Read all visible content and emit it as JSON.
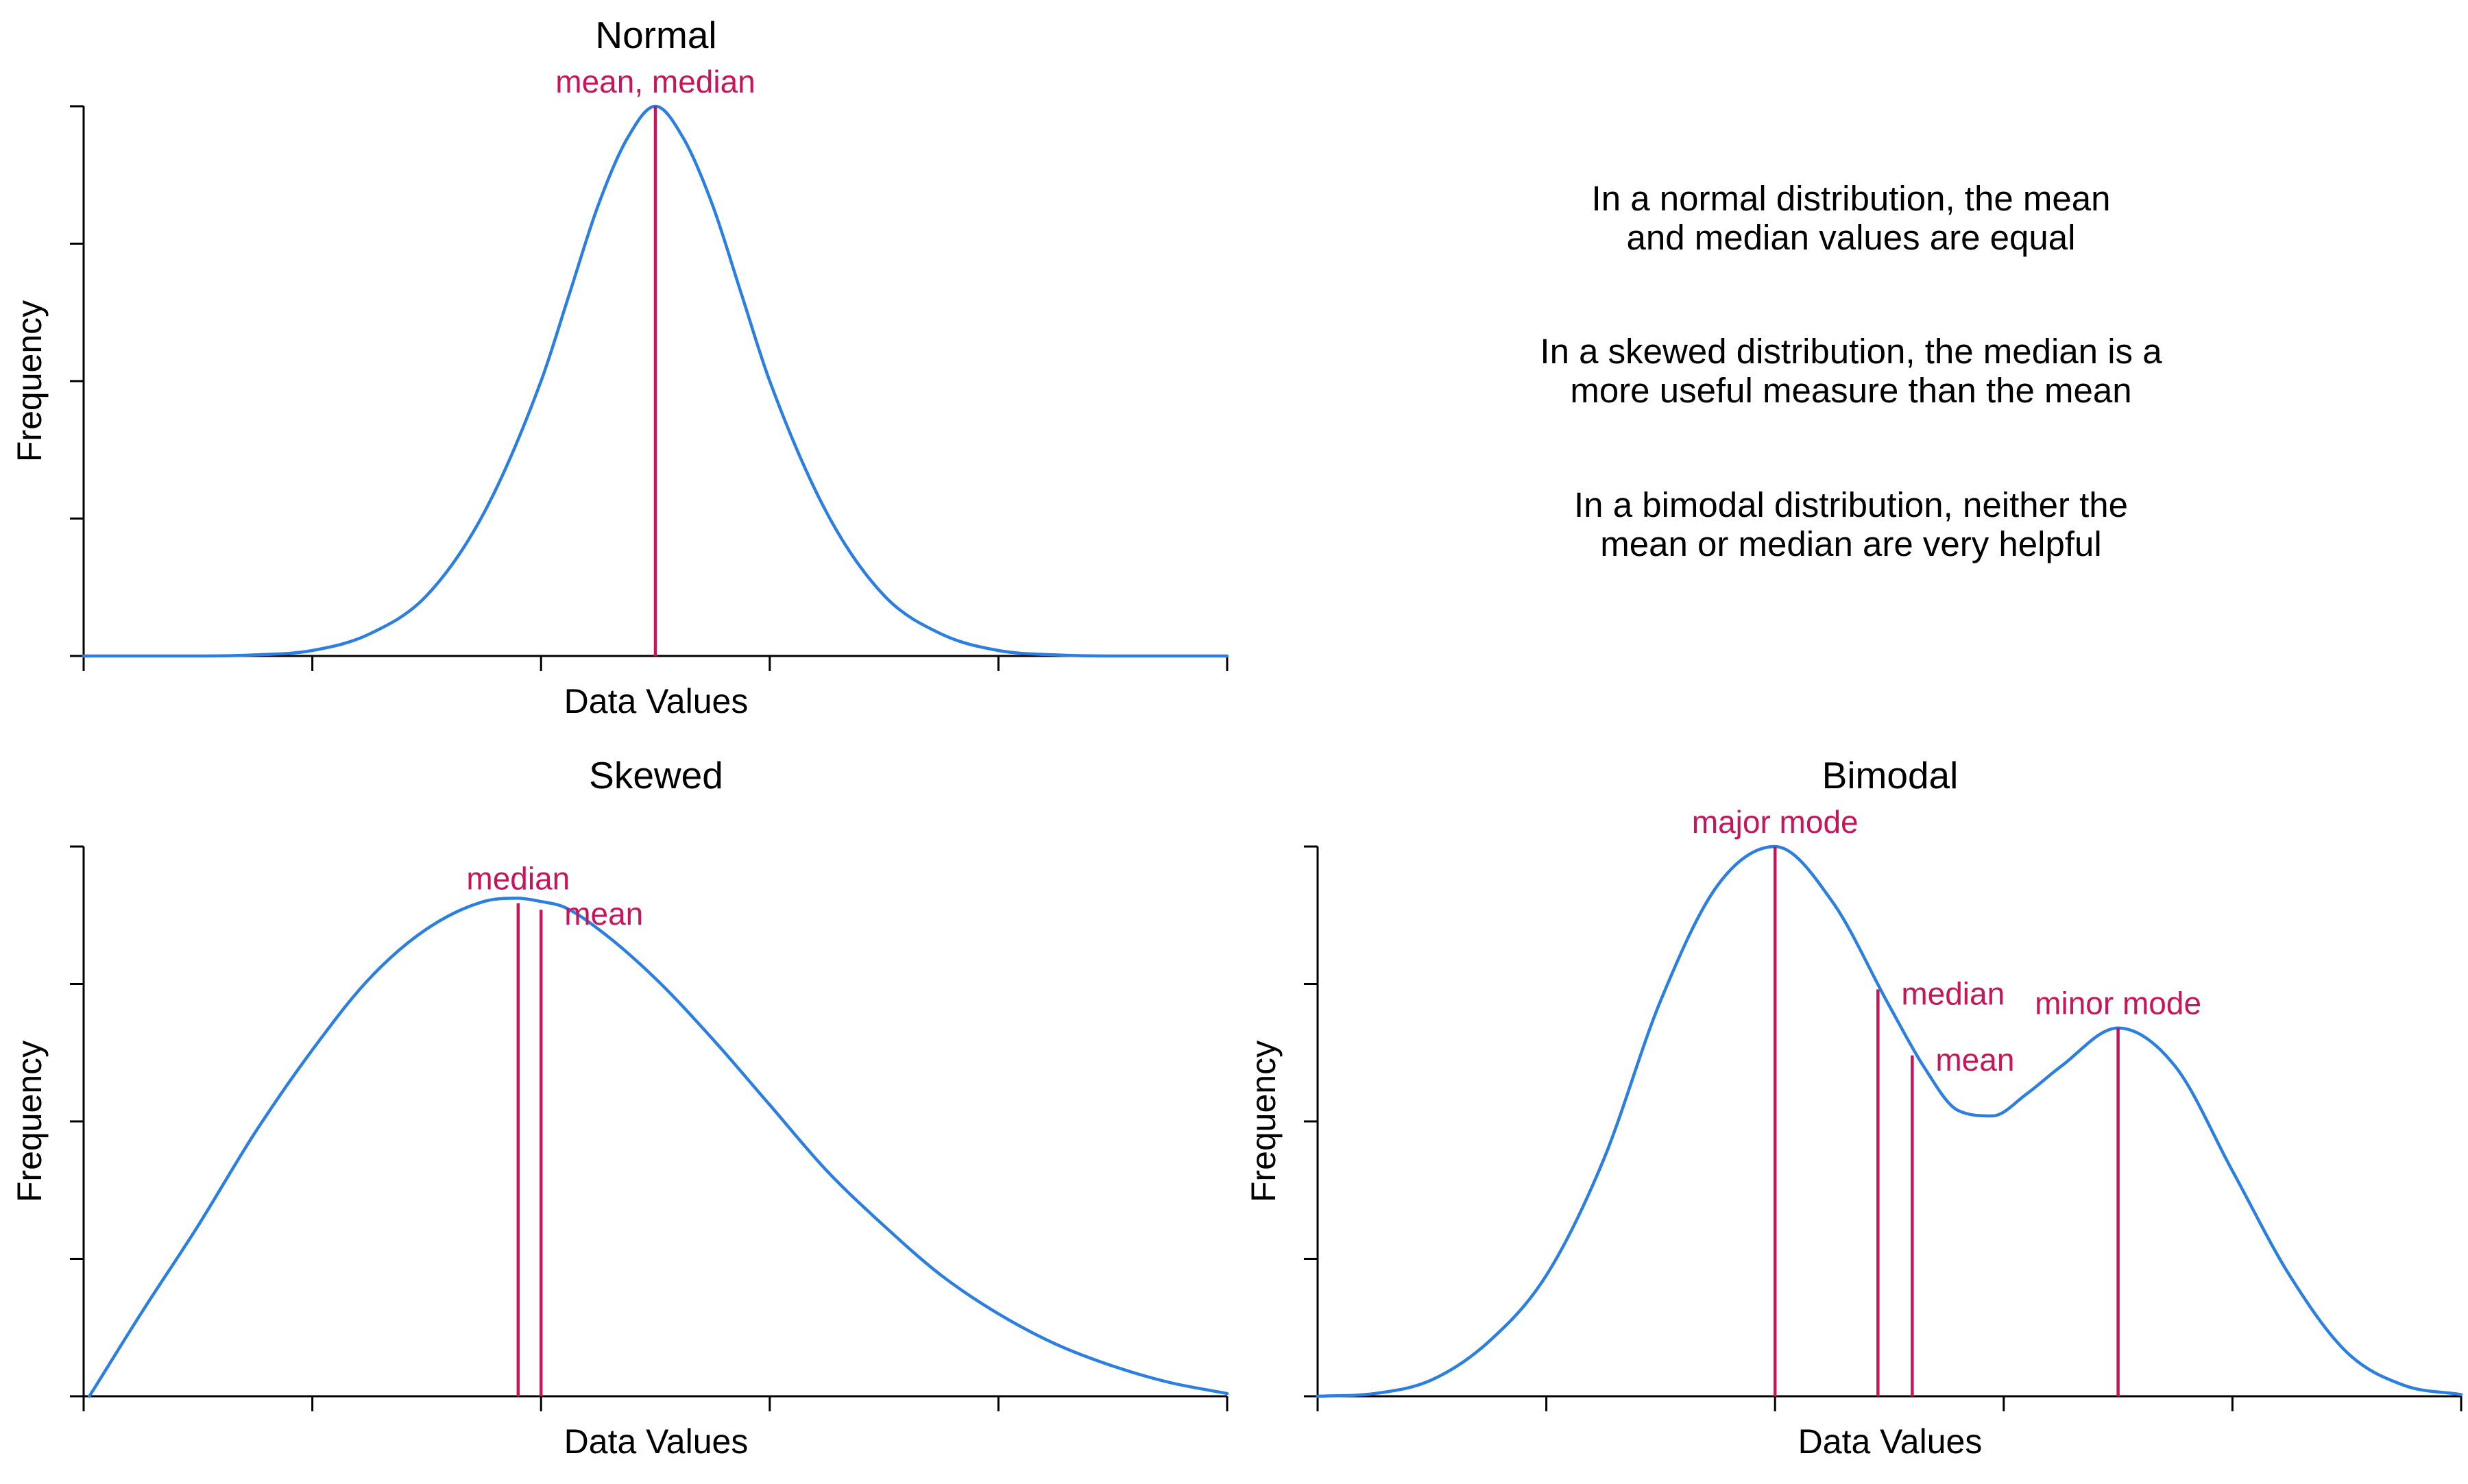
{
  "colors": {
    "curve": "#2a7fe0",
    "marker": "#c8155a",
    "text": "#000000"
  },
  "notes": [
    [
      "In a normal distribution, the mean",
      "and median values are equal"
    ],
    [
      "In a skewed distribution, the median is a",
      "more useful measure than the mean"
    ],
    [
      "In a bimodal distribution, neither the",
      "mean or median are very helpful"
    ]
  ],
  "chart_data": [
    {
      "type": "line",
      "title": "Normal",
      "xlabel": "Data Values",
      "ylabel": "Frequency",
      "xlim": [
        0,
        10
      ],
      "ylim": [
        0,
        1
      ],
      "x_ticks": 6,
      "y_ticks": 5,
      "tick_labels_visible": false,
      "grid": false,
      "legend": "none",
      "series": [
        {
          "x": [
            0,
            1,
            1.5,
            2,
            2.5,
            3,
            3.5,
            4,
            4.25,
            4.5,
            4.75,
            5,
            5.25,
            5.5,
            5.75,
            6,
            6.5,
            7,
            7.5,
            8,
            8.5,
            9,
            10
          ],
          "y": [
            0,
            0,
            0.002,
            0.01,
            0.04,
            0.11,
            0.26,
            0.5,
            0.66,
            0.82,
            0.94,
            1,
            0.94,
            0.82,
            0.66,
            0.5,
            0.26,
            0.11,
            0.04,
            0.01,
            0.002,
            0,
            0
          ]
        }
      ],
      "markers": [
        {
          "x": 5,
          "y": 1,
          "label": "mean, median",
          "label_pos": "top"
        }
      ]
    },
    {
      "type": "line",
      "title": "Skewed",
      "xlabel": "Data Values",
      "ylabel": "Frequency",
      "xlim": [
        0,
        10
      ],
      "ylim": [
        0,
        1
      ],
      "x_ticks": 6,
      "y_ticks": 5,
      "tick_labels_visible": false,
      "grid": false,
      "legend": "none",
      "series": [
        {
          "x": [
            0.05,
            0.5,
            1,
            1.5,
            2,
            2.5,
            3,
            3.5,
            3.8,
            4,
            4.2,
            4.5,
            5,
            5.5,
            6,
            6.5,
            7,
            7.5,
            8,
            8.5,
            9,
            9.5,
            10
          ],
          "y": [
            0,
            0.15,
            0.31,
            0.48,
            0.63,
            0.76,
            0.85,
            0.9,
            0.906,
            0.9,
            0.89,
            0.85,
            0.76,
            0.65,
            0.53,
            0.41,
            0.31,
            0.22,
            0.15,
            0.095,
            0.055,
            0.025,
            0.005
          ]
        }
      ],
      "markers": [
        {
          "x": 3.8,
          "y": 0.897,
          "label": "median",
          "label_pos": "top"
        },
        {
          "x": 4.0,
          "y": 0.885,
          "label": "mean",
          "label_pos": "right"
        }
      ]
    },
    {
      "type": "line",
      "title": "Bimodal",
      "xlabel": "Data Values",
      "ylabel": "Frequency",
      "xlim": [
        0,
        10
      ],
      "ylim": [
        0,
        1
      ],
      "x_ticks": 6,
      "y_ticks": 5,
      "tick_labels_visible": false,
      "grid": false,
      "legend": "none",
      "series": [
        {
          "x": [
            0,
            0.5,
            1,
            1.5,
            2,
            2.5,
            3,
            3.5,
            4,
            4.5,
            5,
            5.3,
            5.6,
            5.9,
            6.2,
            6.5,
            7,
            7.5,
            8,
            8.5,
            9,
            9.5,
            10
          ],
          "y": [
            0,
            0.005,
            0.03,
            0.1,
            0.22,
            0.43,
            0.72,
            0.93,
            1,
            0.9,
            0.71,
            0.6,
            0.52,
            0.51,
            0.55,
            0.6,
            0.67,
            0.6,
            0.41,
            0.22,
            0.08,
            0.02,
            0.003
          ]
        }
      ],
      "markers": [
        {
          "x": 4.0,
          "y": 1,
          "label": "major mode",
          "label_pos": "top"
        },
        {
          "x": 4.9,
          "y": 0.74,
          "label": "median",
          "label_pos": "right"
        },
        {
          "x": 5.2,
          "y": 0.62,
          "label": "mean",
          "label_pos": "right"
        },
        {
          "x": 7.0,
          "y": 0.67,
          "label": "minor mode",
          "label_pos": "top"
        }
      ]
    }
  ]
}
